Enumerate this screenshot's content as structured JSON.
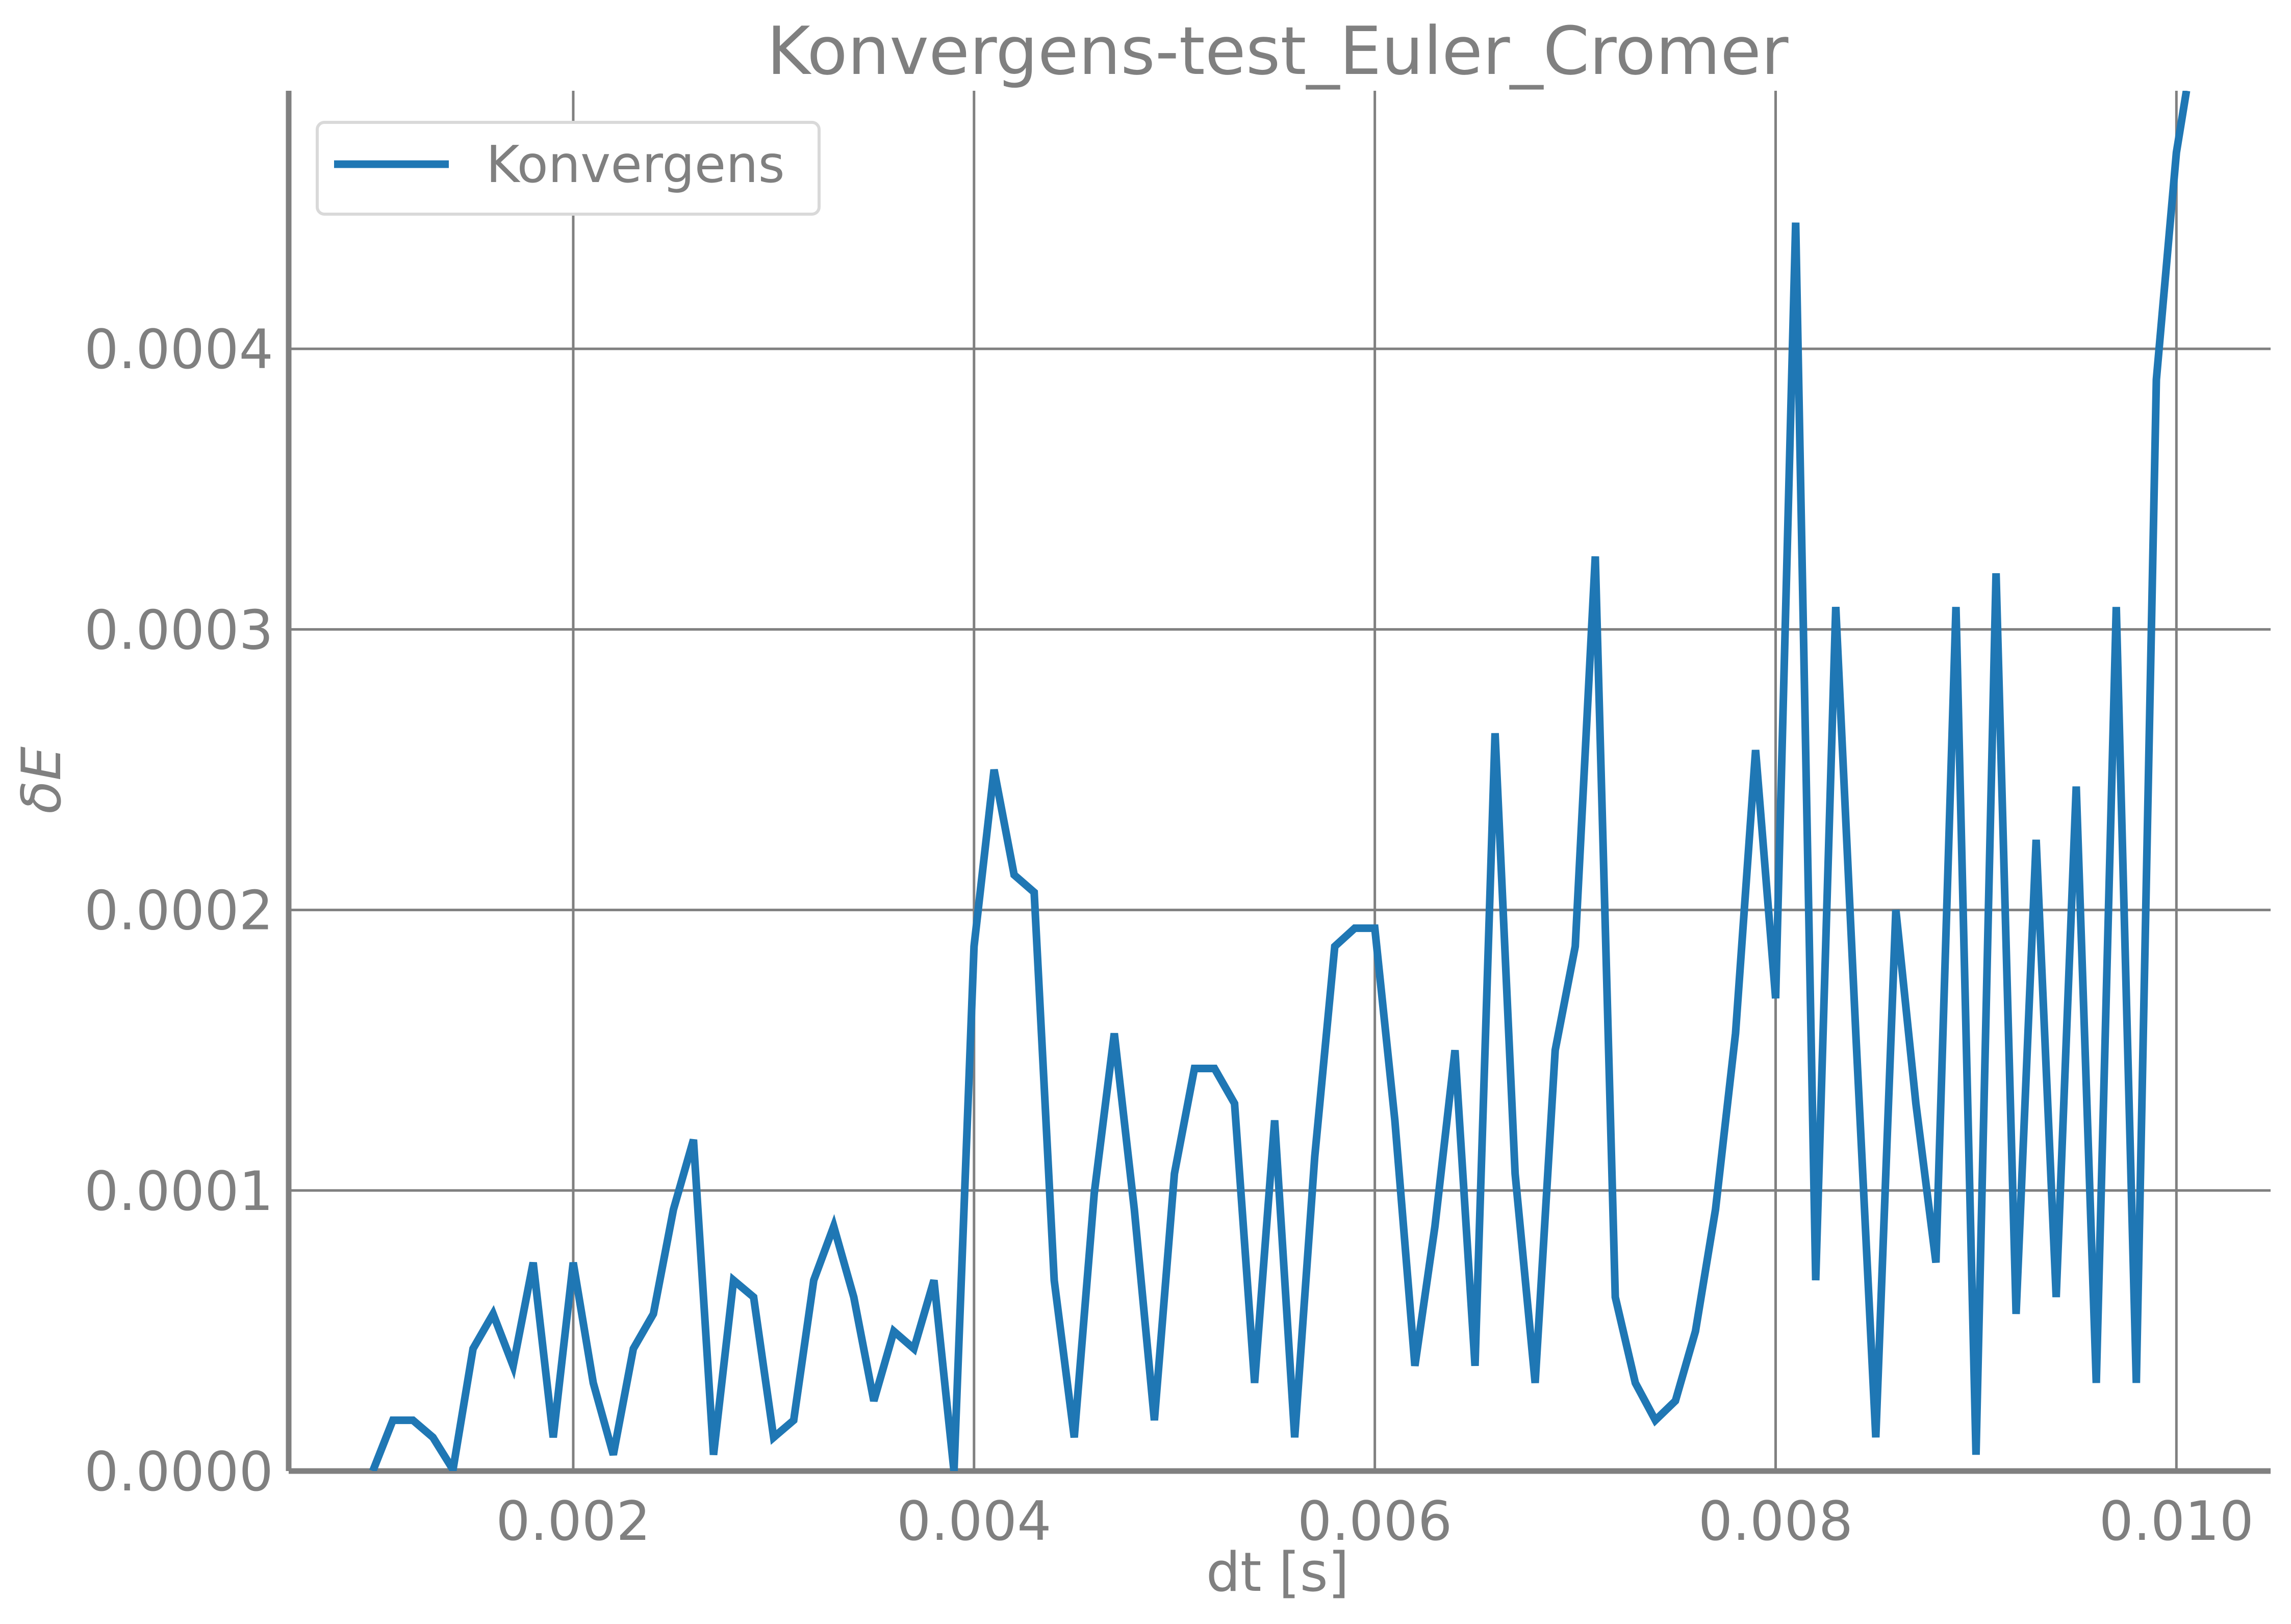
{
  "chart_data": {
    "type": "line",
    "title": "Konvergens-test_Euler_Cromer",
    "xlabel": "dt [s]",
    "ylabel": "δE",
    "xlim": [
      0.00058,
      0.01047
    ],
    "ylim": [
      0.0,
      0.000492
    ],
    "grid": true,
    "legend_position": "top-left",
    "x_ticks": [
      {
        "value": 0.002,
        "label": "0.002"
      },
      {
        "value": 0.004,
        "label": "0.004"
      },
      {
        "value": 0.006,
        "label": "0.006"
      },
      {
        "value": 0.008,
        "label": "0.008"
      },
      {
        "value": 0.01,
        "label": "0.010"
      }
    ],
    "y_ticks": [
      {
        "value": 0.0,
        "label": "0.0000"
      },
      {
        "value": 0.0001,
        "label": "0.0001"
      },
      {
        "value": 0.0002,
        "label": "0.0002"
      },
      {
        "value": 0.0003,
        "label": "0.0003"
      },
      {
        "value": 0.0004,
        "label": "0.0004"
      }
    ],
    "series": [
      {
        "name": "Konvergens",
        "color": "#1f77b4",
        "x": [
          0.001,
          0.0011,
          0.0012,
          0.0013,
          0.0014,
          0.0015,
          0.0016,
          0.0017,
          0.0018,
          0.0019,
          0.002,
          0.0021,
          0.0022,
          0.0023,
          0.0024,
          0.0025,
          0.0026,
          0.0027,
          0.0028,
          0.0029,
          0.003,
          0.0031,
          0.0032,
          0.0033,
          0.0034,
          0.0035,
          0.0036,
          0.0037,
          0.0038,
          0.0039,
          0.004,
          0.0041,
          0.0042,
          0.0043,
          0.0044,
          0.0045,
          0.0046,
          0.0047,
          0.0048,
          0.0049,
          0.005,
          0.0051,
          0.0052,
          0.0053,
          0.0054,
          0.0055,
          0.0056,
          0.0057,
          0.0058,
          0.0059,
          0.006,
          0.0061,
          0.0062,
          0.0063,
          0.0064,
          0.0065,
          0.0066,
          0.0067,
          0.0068,
          0.0069,
          0.007,
          0.0071,
          0.0072,
          0.0073,
          0.0074,
          0.0075,
          0.0076,
          0.0077,
          0.0078,
          0.0079,
          0.008,
          0.0081,
          0.0082,
          0.0083,
          0.0084,
          0.0085,
          0.0086,
          0.0087,
          0.0088,
          0.0089,
          0.009,
          0.0091,
          0.0092,
          0.0093,
          0.0094,
          0.0095,
          0.0096,
          0.0097,
          0.0098,
          0.0099,
          0.01,
          0.01005
        ],
        "y": [
          0.0,
          1.81e-05,
          1.81e-05,
          1.2e-05,
          5e-07,
          4.36e-05,
          5.6e-05,
          3.75e-05,
          7.43e-05,
          1.2e-05,
          7.43e-05,
          3.14e-05,
          5.8e-06,
          4.36e-05,
          5.6e-05,
          9.32e-05,
          0.0001181,
          5.8e-06,
          6.8e-05,
          6.2e-05,
          1.2e-05,
          1.81e-05,
          6.8e-05,
          8.72e-05,
          6.2e-05,
          2.5e-05,
          4.98e-05,
          4.36e-05,
          6.8e-05,
          0.0,
          0.000187,
          0.00025,
          0.0002125,
          0.0002063,
          6.8e-05,
          1.2e-05,
          9.9e-05,
          0.000156,
          9.32e-05,
          1.81e-05,
          0.000106,
          0.0001435,
          0.0001435,
          0.000131,
          3.14e-05,
          0.000125,
          1.2e-05,
          0.000112,
          0.000187,
          0.0001935,
          0.0001935,
          0.000125,
          3.75e-05,
          8.72e-05,
          0.00015,
          3.75e-05,
          0.000263,
          0.000106,
          3.14e-05,
          0.00015,
          0.000187,
          0.000326,
          6.2e-05,
          3.14e-05,
          1.81e-05,
          2.5e-05,
          4.98e-05,
          9.32e-05,
          0.000156,
          0.000257,
          0.0001685,
          0.000445,
          6.8e-05,
          0.000308,
          0.000156,
          1.2e-05,
          0.0002,
          0.000131,
          7.43e-05,
          0.000308,
          5.8e-06,
          0.00032,
          5.6e-05,
          0.000225,
          6.2e-05,
          0.000244,
          3.14e-05,
          0.000308,
          3.14e-05,
          0.000389,
          0.00047,
          0.000492
        ]
      }
    ]
  }
}
